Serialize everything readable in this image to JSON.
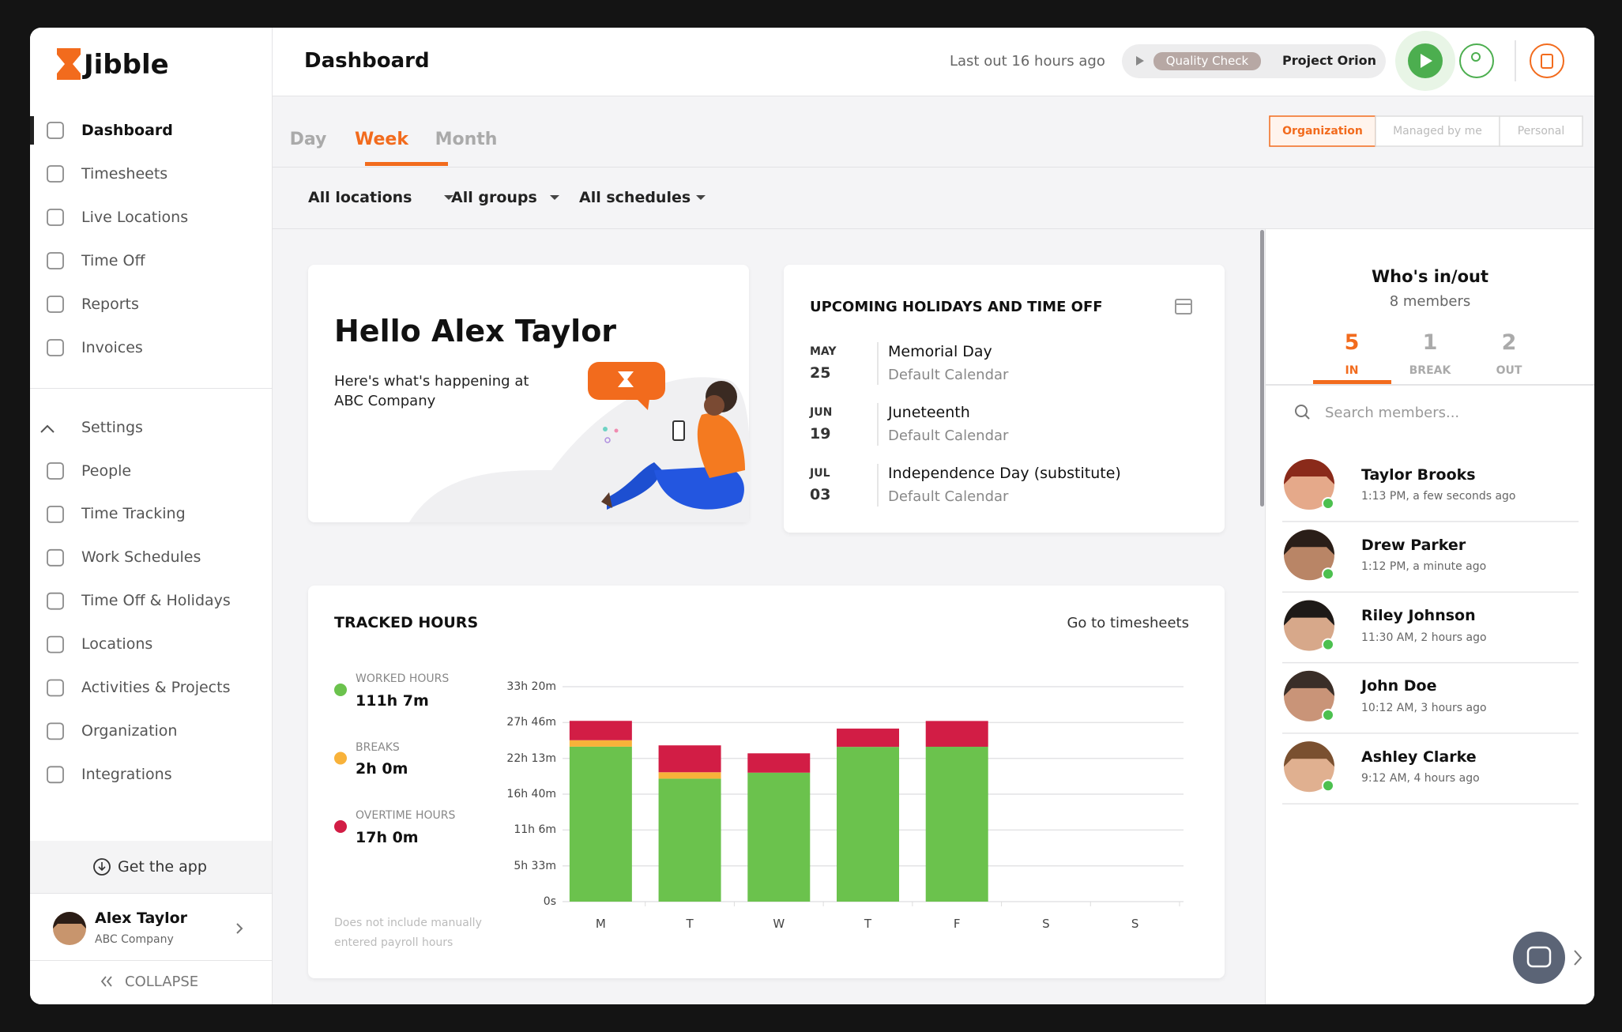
{
  "sidebar": {
    "logo": "Jibble",
    "nav": [
      "Dashboard",
      "Timesheets",
      "Live Locations",
      "Time Off",
      "Reports",
      "Invoices"
    ],
    "settings": "Settings",
    "settings_items": [
      "People",
      "Time Tracking",
      "Work Schedules",
      "Time Off & Holidays",
      "Locations",
      "Activities & Projects",
      "Organization",
      "Integrations"
    ],
    "get_app": "Get the app",
    "user": {
      "name": "Alex Taylor",
      "company": "ABC Company"
    },
    "collapse": "COLLAPSE"
  },
  "header": {
    "title": "Dashboard",
    "last_out": "Last out 16 hours ago",
    "activity": "Quality Check",
    "project": "Project Orion"
  },
  "tabs": [
    "Day",
    "Week",
    "Month"
  ],
  "scopes": [
    "Organization",
    "Managed by me",
    "Personal"
  ],
  "filters": [
    "All locations",
    "All groups",
    "All schedules"
  ],
  "hello": {
    "title": "Hello Alex Taylor",
    "text": "Here's what's happening at ABC Company"
  },
  "holidays": {
    "title": "UPCOMING HOLIDAYS AND TIME OFF",
    "items": [
      {
        "month": "MAY",
        "day": "25",
        "name": "Memorial Day",
        "calendar": "Default Calendar"
      },
      {
        "month": "JUN",
        "day": "19",
        "name": "Juneteenth",
        "calendar": "Default Calendar"
      },
      {
        "month": "JUL",
        "day": "03",
        "name": "Independence Day (substitute)",
        "calendar": "Default Calendar"
      }
    ]
  },
  "chart_data": {
    "type": "bar",
    "stacked": true,
    "title": "TRACKED HOURS",
    "link": "Go to timesheets",
    "note": "Does not include manually entered payroll hours",
    "categories": [
      "M",
      "T",
      "W",
      "T",
      "F",
      "S",
      "S"
    ],
    "series": [
      {
        "name": "WORKED HOURS",
        "total": "111h 7m",
        "color": "#6bc24d",
        "values": [
          1442,
          1144,
          1200,
          1440,
          1441,
          0,
          0
        ]
      },
      {
        "name": "BREAKS",
        "total": "2h 0m",
        "color": "#f8b23a",
        "values": [
          60,
          60,
          0,
          0,
          0,
          0,
          0
        ]
      },
      {
        "name": "OVERTIME HOURS",
        "total": "17h 0m",
        "color": "#d21d45",
        "values": [
          180,
          250,
          180,
          170,
          240,
          0,
          0
        ]
      }
    ],
    "ylim": [
      0,
      2000
    ],
    "yticks": [
      {
        "value": 0,
        "label": "0s"
      },
      {
        "value": 333,
        "label": "5h 33m"
      },
      {
        "value": 666,
        "label": "11h 6m"
      },
      {
        "value": 1000,
        "label": "16h 40m"
      },
      {
        "value": 1333,
        "label": "22h 13m"
      },
      {
        "value": 1666,
        "label": "27h 46m"
      },
      {
        "value": 2000,
        "label": "33h 20m"
      }
    ],
    "grid": true
  },
  "whos": {
    "title": "Who's in/out",
    "subtitle": "8 members",
    "counts": [
      {
        "value": "5",
        "label": "IN"
      },
      {
        "value": "1",
        "label": "BREAK"
      },
      {
        "value": "2",
        "label": "OUT"
      }
    ],
    "search": "Search members...",
    "members": [
      {
        "name": "Taylor Brooks",
        "time": "1:13 PM, a few seconds ago"
      },
      {
        "name": "Drew Parker",
        "time": "1:12 PM, a minute ago"
      },
      {
        "name": "Riley Johnson",
        "time": "11:30 AM, 2 hours ago"
      },
      {
        "name": "John Doe",
        "time": "10:12 AM, 3 hours ago"
      },
      {
        "name": "Ashley Clarke",
        "time": "9:12 AM, 4 hours ago"
      }
    ]
  }
}
